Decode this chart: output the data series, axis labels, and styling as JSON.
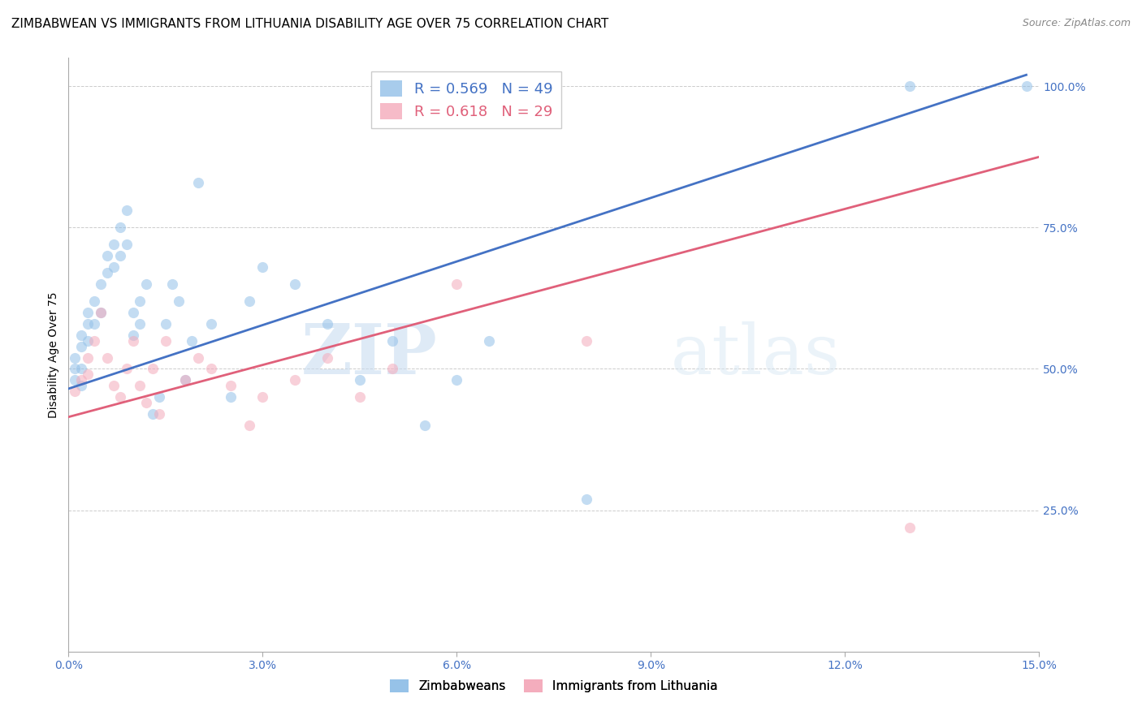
{
  "title": "ZIMBABWEAN VS IMMIGRANTS FROM LITHUANIA DISABILITY AGE OVER 75 CORRELATION CHART",
  "source": "Source: ZipAtlas.com",
  "ylabel_label": "Disability Age Over 75",
  "x_min": 0.0,
  "x_max": 0.15,
  "y_min": 0.0,
  "y_max": 1.05,
  "x_ticks": [
    0.0,
    0.03,
    0.06,
    0.09,
    0.12,
    0.15
  ],
  "x_tick_labels": [
    "0.0%",
    "3.0%",
    "6.0%",
    "9.0%",
    "12.0%",
    "15.0%"
  ],
  "y_ticks": [
    0.25,
    0.5,
    0.75,
    1.0
  ],
  "y_tick_labels": [
    "25.0%",
    "50.0%",
    "75.0%",
    "100.0%"
  ],
  "blue_line_x": [
    0.0,
    0.148
  ],
  "blue_line_y": [
    0.465,
    1.02
  ],
  "pink_line_x": [
    0.0,
    0.15
  ],
  "pink_line_y": [
    0.415,
    0.875
  ],
  "blue_scatter_x": [
    0.001,
    0.001,
    0.001,
    0.002,
    0.002,
    0.002,
    0.002,
    0.003,
    0.003,
    0.003,
    0.004,
    0.004,
    0.005,
    0.005,
    0.006,
    0.006,
    0.007,
    0.007,
    0.008,
    0.008,
    0.009,
    0.009,
    0.01,
    0.01,
    0.011,
    0.011,
    0.012,
    0.013,
    0.014,
    0.015,
    0.016,
    0.017,
    0.018,
    0.019,
    0.02,
    0.022,
    0.025,
    0.028,
    0.03,
    0.035,
    0.04,
    0.045,
    0.05,
    0.055,
    0.06,
    0.065,
    0.08,
    0.13,
    0.148
  ],
  "blue_scatter_y": [
    0.5,
    0.52,
    0.48,
    0.56,
    0.54,
    0.5,
    0.47,
    0.6,
    0.58,
    0.55,
    0.62,
    0.58,
    0.65,
    0.6,
    0.7,
    0.67,
    0.72,
    0.68,
    0.75,
    0.7,
    0.78,
    0.72,
    0.6,
    0.56,
    0.62,
    0.58,
    0.65,
    0.42,
    0.45,
    0.58,
    0.65,
    0.62,
    0.48,
    0.55,
    0.83,
    0.58,
    0.45,
    0.62,
    0.68,
    0.65,
    0.58,
    0.48,
    0.55,
    0.4,
    0.48,
    0.55,
    0.27,
    1.0,
    1.0
  ],
  "pink_scatter_x": [
    0.001,
    0.002,
    0.003,
    0.003,
    0.004,
    0.005,
    0.006,
    0.007,
    0.008,
    0.009,
    0.01,
    0.011,
    0.012,
    0.013,
    0.014,
    0.015,
    0.018,
    0.02,
    0.022,
    0.025,
    0.028,
    0.03,
    0.035,
    0.04,
    0.045,
    0.05,
    0.06,
    0.08,
    0.13
  ],
  "pink_scatter_y": [
    0.46,
    0.48,
    0.52,
    0.49,
    0.55,
    0.6,
    0.52,
    0.47,
    0.45,
    0.5,
    0.55,
    0.47,
    0.44,
    0.5,
    0.42,
    0.55,
    0.48,
    0.52,
    0.5,
    0.47,
    0.4,
    0.45,
    0.48,
    0.52,
    0.45,
    0.5,
    0.65,
    0.55,
    0.22
  ],
  "blue_color": "#92C0E8",
  "pink_color": "#F4AABB",
  "blue_line_color": "#4472C4",
  "pink_line_color": "#E0607A",
  "scatter_alpha": 0.55,
  "scatter_size": 90,
  "watermark_zip": "ZIP",
  "watermark_atlas": "atlas",
  "title_fontsize": 11,
  "axis_label_fontsize": 10,
  "tick_color": "#4472C4",
  "legend_r1": "R = 0.569   N = 49",
  "legend_r2": "R = 0.618   N = 29",
  "legend_b1": "Zimbabweans",
  "legend_b2": "Immigrants from Lithuania"
}
